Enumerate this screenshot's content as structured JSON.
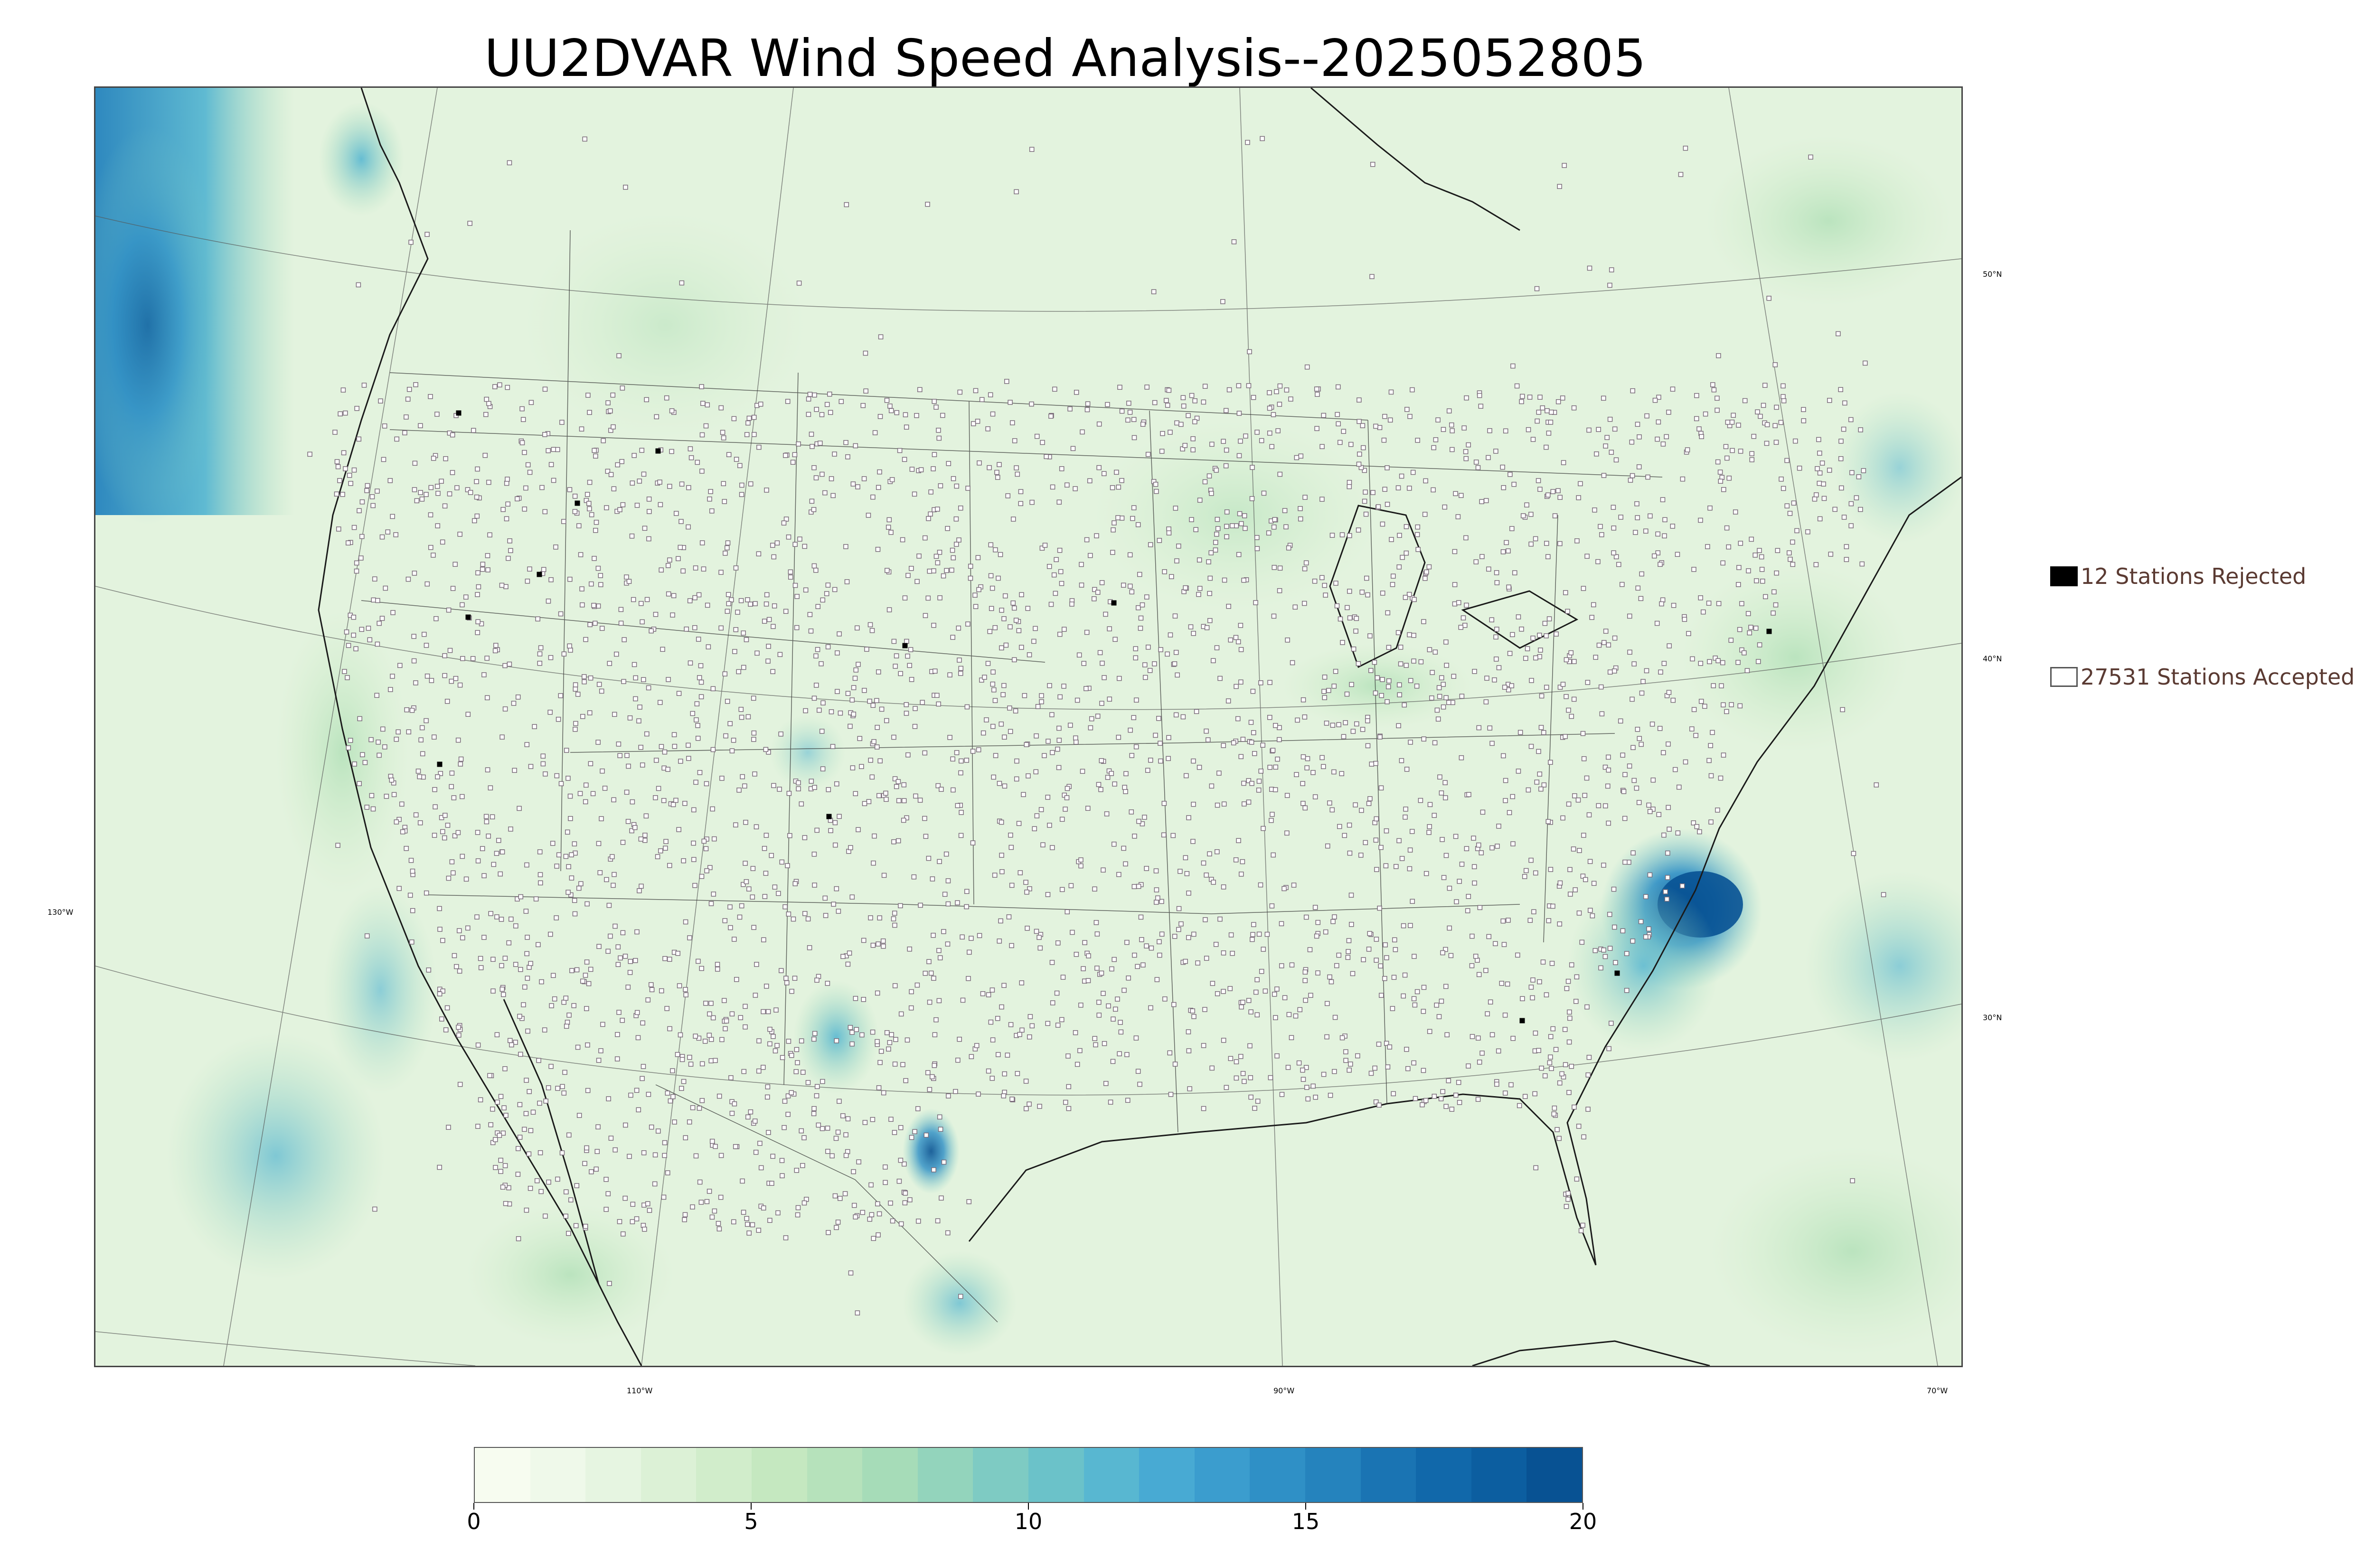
{
  "title": "UU2DVAR Wind Speed Analysis--2025052805",
  "legend": {
    "rejected_label": "12 Stations Rejected",
    "accepted_label": "27531 Stations Accepted"
  },
  "longitude_labels": [
    "130°W",
    "110°W",
    "90°W",
    "70°W"
  ],
  "latitude_labels": [
    "50°N",
    "40°N",
    "30°N"
  ],
  "colorbar": {
    "ticks": [
      "0",
      "5",
      "10",
      "15",
      "20"
    ],
    "min": 0,
    "max": 20,
    "colors": [
      "#f7fcf0",
      "#eff9ea",
      "#e6f5e1",
      "#dcf1d6",
      "#d1edcb",
      "#c5e8c0",
      "#b6e2bb",
      "#a6dcb8",
      "#93d4bc",
      "#7ecbc3",
      "#6bc2c9",
      "#58b7d1",
      "#48aad3",
      "#3b9dce",
      "#2f90c6",
      "#2583bd",
      "#1a74b3",
      "#1168aa",
      "#0c5ea0",
      "#085293"
    ]
  },
  "map_colors": {
    "land": "#eaf6e6",
    "ocean_calm": "#d6efd2",
    "wind_moderate": "#7ecbc3",
    "wind_strong": "#2f90c6",
    "wind_extreme": "#085293",
    "station_accepted": "#8a7a8a",
    "station_rejected": "#000000"
  }
}
